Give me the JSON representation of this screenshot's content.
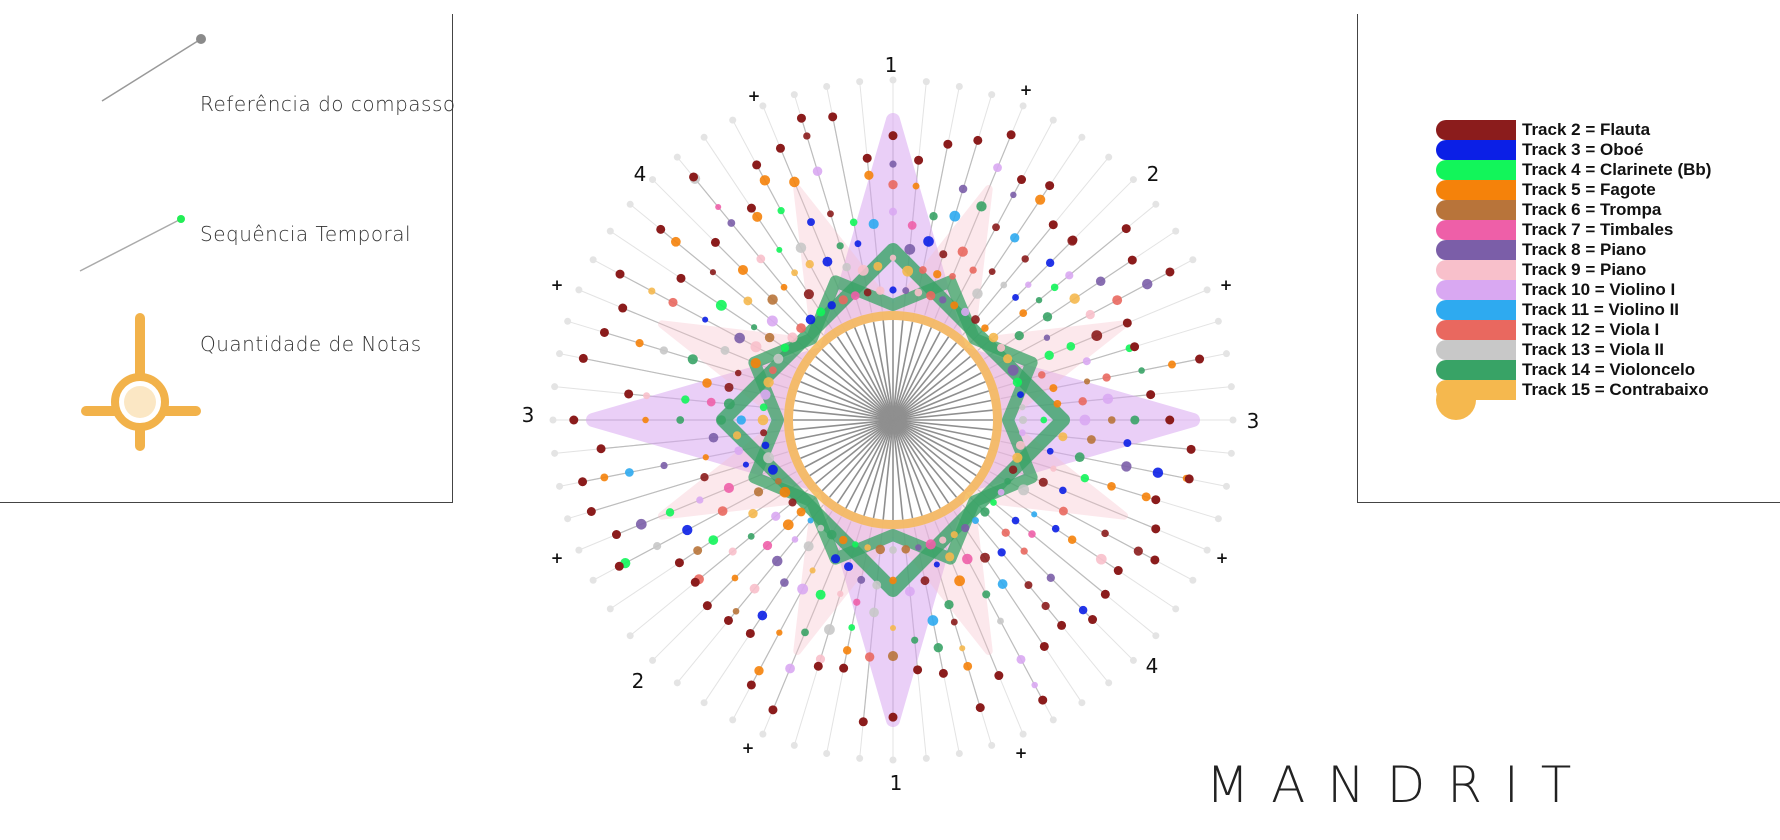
{
  "legend": {
    "measure_reference": "Referência do compasso",
    "time_sequence": "Sequência Temporal",
    "note_quantity": "Quantidade de Notas"
  },
  "tracks": [
    {
      "label": "Track 2 = Flauta",
      "color": "#8b1c1c"
    },
    {
      "label": "Track 3 = Oboé",
      "color": "#0b1fe6"
    },
    {
      "label": "Track 4 = Clarinete (Bb)",
      "color": "#12f55a"
    },
    {
      "label": "Track 5 = Fagote",
      "color": "#f5820a"
    },
    {
      "label": "Track 6 = Trompa",
      "color": "#b8743a"
    },
    {
      "label": "Track 7 = Timbales",
      "color": "#ee5fa8"
    },
    {
      "label": "Track 8 = Piano",
      "color": "#7b5ea8"
    },
    {
      "label": "Track 9 = Piano",
      "color": "#f8c0cb"
    },
    {
      "label": "Track 10 = Violino I",
      "color": "#d9a8f2"
    },
    {
      "label": "Track 11 = Violino II",
      "color": "#2eaaf0"
    },
    {
      "label": "Track 12 = Viola I",
      "color": "#e9685f"
    },
    {
      "label": "Track 13 = Viola II",
      "color": "#c8c8c8"
    },
    {
      "label": "Track 14 = Violoncelo",
      "color": "#38a366"
    },
    {
      "label": "Track 15 = Contrabaixo",
      "color": "#f5b84e"
    }
  ],
  "radial": {
    "top_label": "1",
    "bottom_label": "1",
    "upper_right_label": "2",
    "lower_left_label": "2",
    "left_label": "3",
    "right_label": "3",
    "upper_left_label": "4",
    "lower_right_label": "4",
    "plus": "+"
  },
  "brand": "MANDRIT"
}
